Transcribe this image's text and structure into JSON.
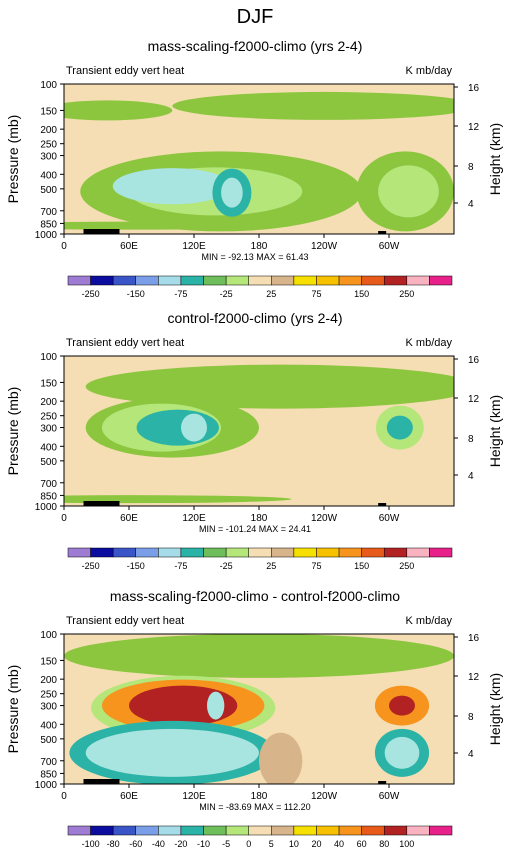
{
  "page_title": "DJF",
  "colors": {
    "fill_background": "#f5deb3",
    "fill_light_green": "#b4e67a",
    "fill_green": "#8cc63f",
    "fill_cyan": "#2ab3a6",
    "fill_pale_cyan": "#a8e4e0",
    "fill_orange": "#f7941d",
    "fill_dark_red": "#b22222",
    "fill_tan": "#d8b48a",
    "topography": "#000000"
  },
  "chart_data": [
    {
      "type": "contour",
      "title": "mass-scaling-f2000-climo (yrs 2-4)",
      "left_label": "Transient eddy vert heat",
      "right_label": "K mb/day",
      "ylabel": "Pressure (mb)",
      "ylabel_right": "Height (km)",
      "x_ticks": [
        "0",
        "60E",
        "120E",
        "180",
        "120W",
        "60W"
      ],
      "y_ticks": [
        "100",
        "150",
        "200",
        "250",
        "300",
        "400",
        "500",
        "700",
        "850",
        "1000"
      ],
      "y_ticks_right": [
        "16",
        "12",
        "8",
        "4"
      ],
      "stats": "MIN = -92.13   MAX =  61.43",
      "colorbar": {
        "labels": [
          "-250",
          "-150",
          "-75",
          "-25",
          "25",
          "75",
          "150",
          "250"
        ],
        "colors": [
          "#9e7cd3",
          "#0c0c9e",
          "#3a55c8",
          "#7a9ee8",
          "#a6dcea",
          "#2ab3a6",
          "#6ebf5b",
          "#b4e67a",
          "#f5deb3",
          "#d8b48a",
          "#f5e000",
          "#f7c000",
          "#f7941d",
          "#e85a1a",
          "#b22222",
          "#f9b2c0",
          "#e8208a"
        ]
      }
    },
    {
      "type": "contour",
      "title": "control-f2000-climo (yrs 2-4)",
      "left_label": "Transient eddy vert heat",
      "right_label": "K mb/day",
      "ylabel": "Pressure (mb)",
      "ylabel_right": "Height (km)",
      "x_ticks": [
        "0",
        "60E",
        "120E",
        "180",
        "120W",
        "60W"
      ],
      "y_ticks": [
        "100",
        "150",
        "200",
        "250",
        "300",
        "400",
        "500",
        "700",
        "850",
        "1000"
      ],
      "y_ticks_right": [
        "16",
        "12",
        "8",
        "4"
      ],
      "stats": "MIN = -101.24   MAX =  24.41",
      "colorbar": {
        "labels": [
          "-250",
          "-150",
          "-75",
          "-25",
          "25",
          "75",
          "150",
          "250"
        ],
        "colors": [
          "#9e7cd3",
          "#0c0c9e",
          "#3a55c8",
          "#7a9ee8",
          "#a6dcea",
          "#2ab3a6",
          "#6ebf5b",
          "#b4e67a",
          "#f5deb3",
          "#d8b48a",
          "#f5e000",
          "#f7c000",
          "#f7941d",
          "#e85a1a",
          "#b22222",
          "#f9b2c0",
          "#e8208a"
        ]
      }
    },
    {
      "type": "contour",
      "title": "mass-scaling-f2000-climo - control-f2000-climo",
      "left_label": "Transient eddy vert heat",
      "right_label": "K mb/day",
      "ylabel": "Pressure (mb)",
      "ylabel_right": "Height (km)",
      "x_ticks": [
        "0",
        "60E",
        "120E",
        "180",
        "120W",
        "60W"
      ],
      "y_ticks": [
        "100",
        "150",
        "200",
        "250",
        "300",
        "400",
        "500",
        "700",
        "850",
        "1000"
      ],
      "y_ticks_right": [
        "16",
        "12",
        "8",
        "4"
      ],
      "stats": "MIN = -83.69   MAX = 112.20",
      "colorbar": {
        "labels": [
          "-100",
          "-80",
          "-60",
          "-40",
          "-20",
          "-10",
          "-5",
          "0",
          "5",
          "10",
          "20",
          "40",
          "60",
          "80",
          "100"
        ],
        "colors": [
          "#9e7cd3",
          "#0c0c9e",
          "#3a55c8",
          "#7a9ee8",
          "#a6dcea",
          "#2ab3a6",
          "#6ebf5b",
          "#b4e67a",
          "#f5deb3",
          "#d8b48a",
          "#f5e000",
          "#f7c000",
          "#f7941d",
          "#e85a1a",
          "#b22222",
          "#f9b2c0",
          "#e8208a"
        ]
      }
    }
  ]
}
